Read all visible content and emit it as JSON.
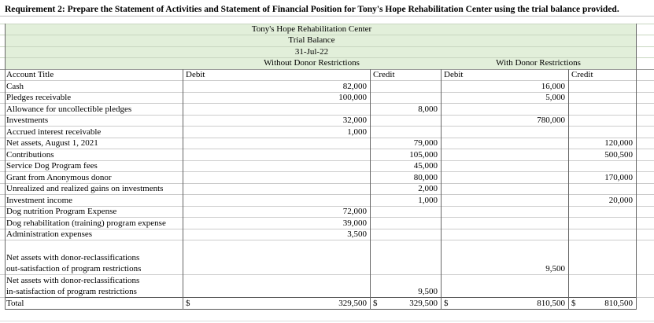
{
  "requirement": "Requirement 2:  Prepare the Statement of Activities and Statement of Financial Position for Tony's Hope Rehabilitation Center using the trial balance provided.",
  "header": {
    "org": "Tony's Hope Rehabilitation Center",
    "title": "Trial Balance",
    "date": "31-Jul-22",
    "groups": [
      "Without Donor Restrictions",
      "With Donor Restrictions"
    ],
    "columns": [
      "Account Title",
      "Debit",
      "Credit",
      "Debit",
      "Credit"
    ]
  },
  "rows": [
    {
      "account": [
        "Cash"
      ],
      "values": [
        "82,000",
        null,
        "16,000",
        null
      ]
    },
    {
      "account": [
        "Pledges receivable"
      ],
      "values": [
        "100,000",
        null,
        "5,000",
        null
      ]
    },
    {
      "account": [
        "Allowance for uncollectible pledges"
      ],
      "values": [
        null,
        "8,000",
        null,
        null
      ]
    },
    {
      "account": [
        "Investments"
      ],
      "values": [
        "32,000",
        null,
        "780,000",
        null
      ]
    },
    {
      "account": [
        "Accrued interest receivable"
      ],
      "values": [
        "1,000",
        null,
        null,
        null
      ]
    },
    {
      "account": [
        "Net assets, August 1, 2021"
      ],
      "values": [
        null,
        "79,000",
        null,
        "120,000"
      ]
    },
    {
      "account": [
        "Contributions"
      ],
      "values": [
        null,
        "105,000",
        null,
        "500,500"
      ]
    },
    {
      "account": [
        "Service Dog Program  fees"
      ],
      "values": [
        null,
        "45,000",
        null,
        null
      ]
    },
    {
      "account": [
        "Grant from Anonymous donor"
      ],
      "values": [
        null,
        "80,000",
        null,
        "170,000"
      ]
    },
    {
      "account": [
        "Unrealized and realized gains on investments"
      ],
      "values": [
        null,
        "2,000",
        null,
        null
      ]
    },
    {
      "account": [
        "Investment income"
      ],
      "values": [
        null,
        "1,000",
        null,
        "20,000"
      ]
    },
    {
      "account": [
        "Dog nutrition Program Expense"
      ],
      "values": [
        "72,000",
        null,
        null,
        null
      ]
    },
    {
      "account": [
        "Dog rehabilitation (training) program expense"
      ],
      "values": [
        "39,000",
        null,
        null,
        null
      ]
    },
    {
      "account": [
        "Administration expenses"
      ],
      "values": [
        "3,500",
        null,
        null,
        null
      ]
    },
    {
      "account": [
        "Net assets with donor-reclassifications",
        "out-satisfaction of program restrictions"
      ],
      "values": [
        null,
        null,
        "9,500",
        null
      ]
    },
    {
      "account": [
        "Net assets with donor-reclassifications",
        "in-satisfaction of program restrictions"
      ],
      "values": [
        null,
        "9,500",
        null,
        null
      ]
    }
  ],
  "total": {
    "account": "Total",
    "currency": "$",
    "values": [
      "329,500",
      "329,500",
      "810,500",
      "810,500"
    ]
  }
}
